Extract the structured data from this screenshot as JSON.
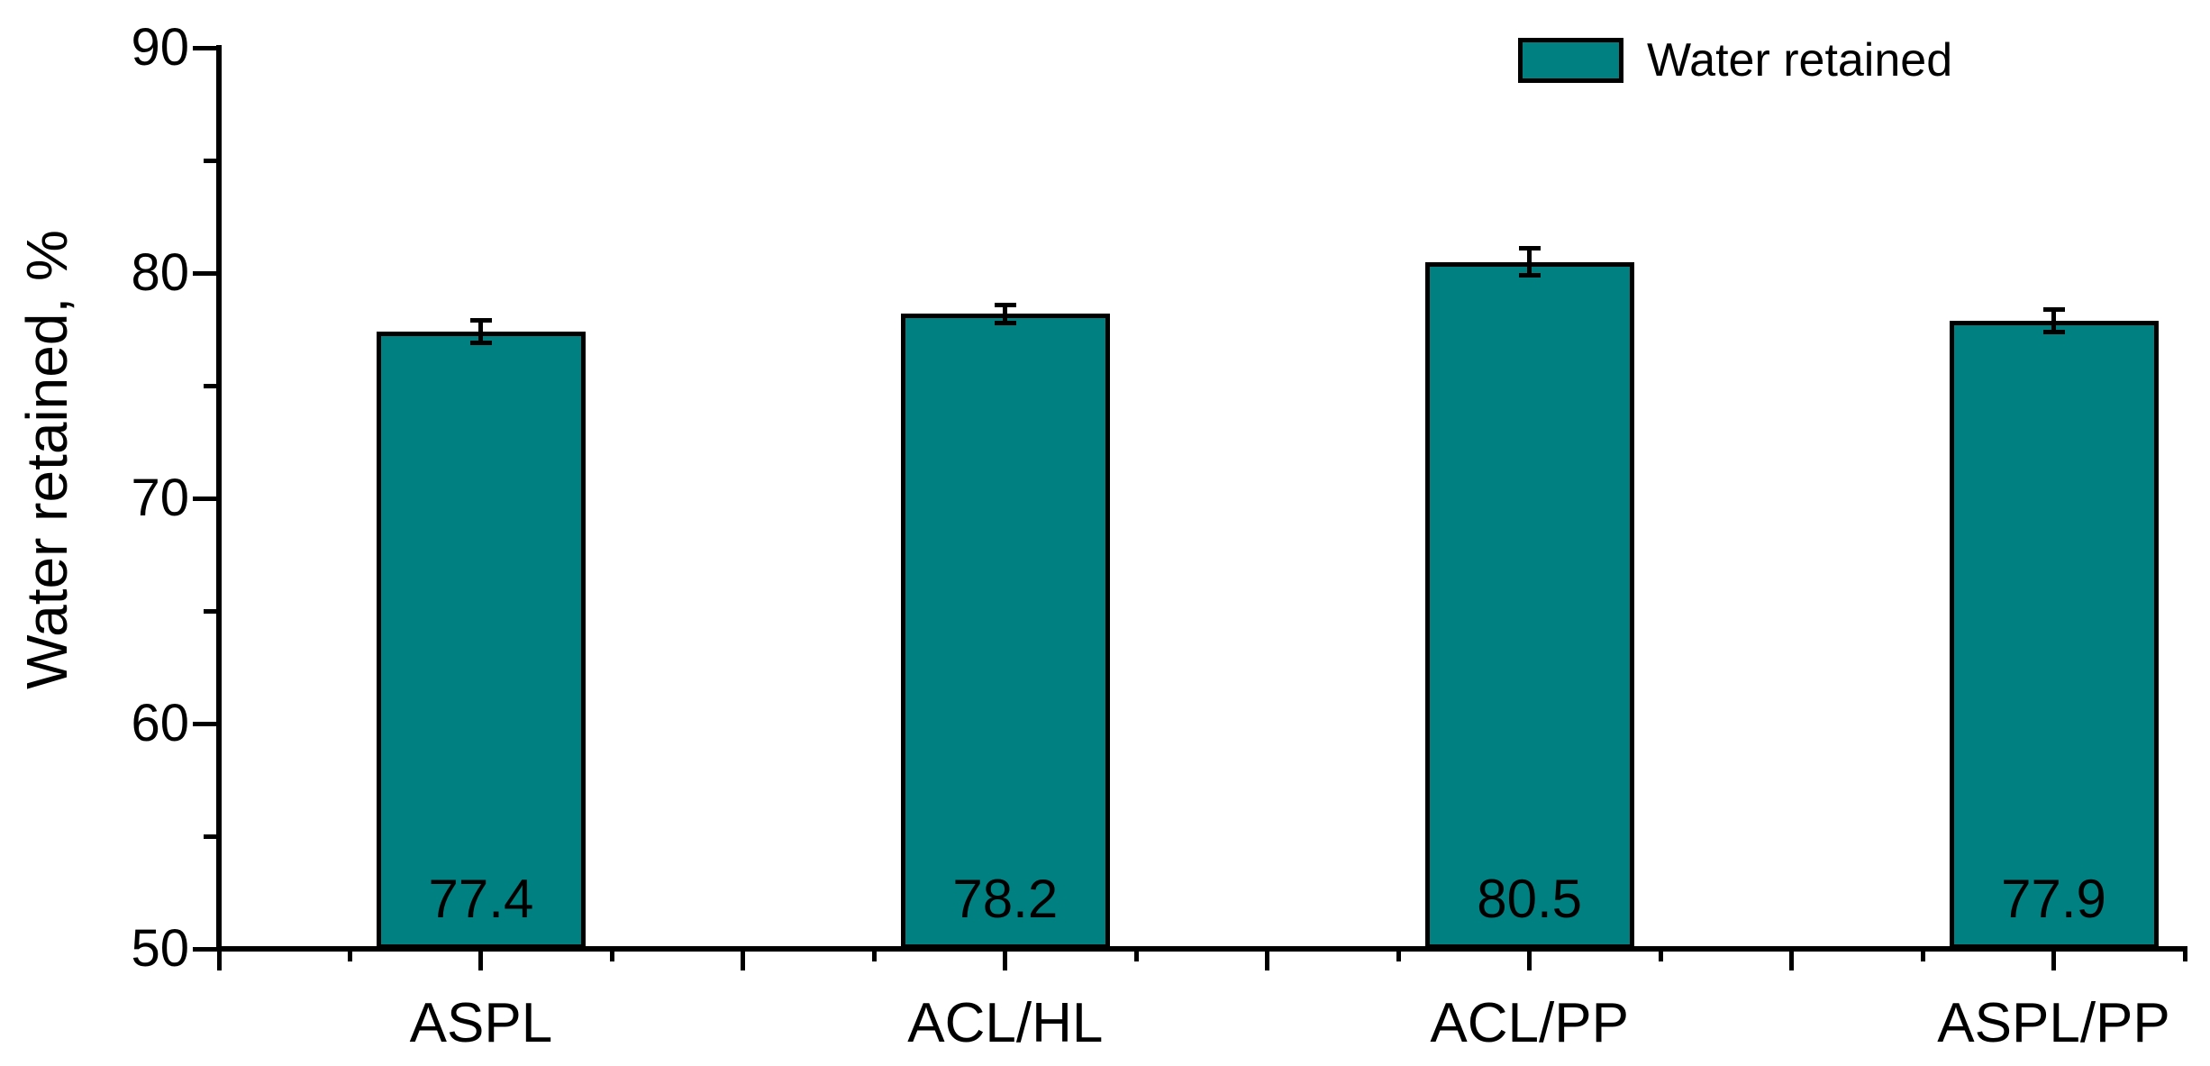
{
  "chart_data": {
    "type": "bar",
    "title": "",
    "categories": [
      "ASPL",
      "ACL/HL",
      "ACL/PP",
      "ASPL/PP"
    ],
    "series": [
      {
        "name": "Water retained",
        "values": [
          77.4,
          78.2,
          80.5,
          77.9
        ],
        "errors": [
          0.5,
          0.4,
          0.6,
          0.5
        ],
        "value_labels": [
          "77.4",
          "78.2",
          "80.5",
          "77.9"
        ]
      }
    ],
    "xlabel": "",
    "ylabel": "Water retained, %",
    "ylim": [
      50,
      90
    ],
    "y_major_ticks": [
      50,
      60,
      70,
      80,
      90
    ],
    "y_minor_ticks": [
      55,
      65,
      75,
      85
    ],
    "grid": false,
    "legend_position": "top-right",
    "bar_fill_color": "#008080",
    "bar_border_color": "#000000",
    "axis_color": "#000000",
    "background_color": "#ffffff"
  },
  "legend": {
    "label": "Water retained"
  }
}
